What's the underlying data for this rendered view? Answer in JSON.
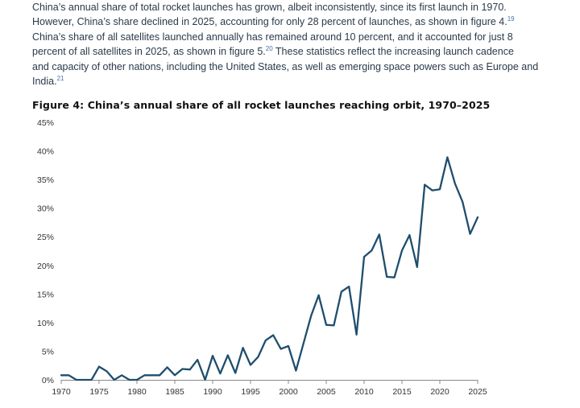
{
  "body": {
    "line1": "China’s annual share of total rocket launches has grown, albeit inconsistently, since its first launch in 1970.",
    "line2a": "However, China’s share declined in 2025, accounting for only 28 percent of launches, as shown in figure 4.",
    "fn1": "19",
    "line3": "China’s share of all satellites launched annually has remained around 10 percent, and it accounted for just 8",
    "line4a": "percent of all satellites in 2025, as shown in figure 5.",
    "fn2": "20",
    "line4b": " These statistics reflect the increasing launch cadence",
    "line5": "and capacity of other nations, including the United States, as well as emerging space powers such as Europe and",
    "line6a": "India.",
    "fn3": "21"
  },
  "figure": {
    "title": "Figure 4: China’s annual share of all rocket launches reaching orbit, 1970–2025"
  },
  "colors": {
    "line": "#1f4e6e",
    "axis": "#888888"
  },
  "chart_data": {
    "type": "line",
    "title": "Figure 4: China’s annual share of all rocket launches reaching orbit, 1970–2025",
    "xlabel": "",
    "ylabel": "",
    "xlim": [
      1970,
      2025
    ],
    "ylim": [
      0,
      45
    ],
    "x_ticks": [
      "1970",
      "1975",
      "1980",
      "1985",
      "1990",
      "1995",
      "2000",
      "2005",
      "2010",
      "2015",
      "2020",
      "2025"
    ],
    "y_ticks": [
      "0%",
      "5%",
      "10%",
      "15%",
      "20%",
      "25%",
      "30%",
      "35%",
      "40%",
      "45%"
    ],
    "grid": false,
    "x": [
      1970,
      1971,
      1972,
      1973,
      1974,
      1975,
      1976,
      1977,
      1978,
      1979,
      1980,
      1981,
      1982,
      1983,
      1984,
      1985,
      1986,
      1987,
      1988,
      1989,
      1990,
      1991,
      1992,
      1993,
      1994,
      1995,
      1996,
      1997,
      1998,
      1999,
      2000,
      2001,
      2002,
      2003,
      2004,
      2005,
      2006,
      2007,
      2008,
      2009,
      2010,
      2011,
      2012,
      2013,
      2014,
      2015,
      2016,
      2017,
      2018,
      2019,
      2020,
      2021,
      2022,
      2023,
      2024,
      2025
    ],
    "series": [
      {
        "values": [
          0.8,
          0.8,
          0,
          0,
          0,
          2.3,
          1.5,
          0,
          0.8,
          0,
          0,
          0.8,
          0.8,
          0.8,
          2.2,
          0.8,
          1.9,
          1.8,
          3.5,
          0,
          4.2,
          1.1,
          4.3,
          1.2,
          5.6,
          2.6,
          4.0,
          6.9,
          7.8,
          5.4,
          5.9,
          1.6,
          6.4,
          11.2,
          14.8,
          9.6,
          9.5,
          15.4,
          16.3,
          7.9,
          21.5,
          22.6,
          25.4,
          18.0,
          17.9,
          22.6,
          25.3,
          19.7,
          34.1,
          33.1,
          33.3,
          38.9,
          34.3,
          31.1,
          25.5,
          28.4
        ]
      }
    ]
  }
}
